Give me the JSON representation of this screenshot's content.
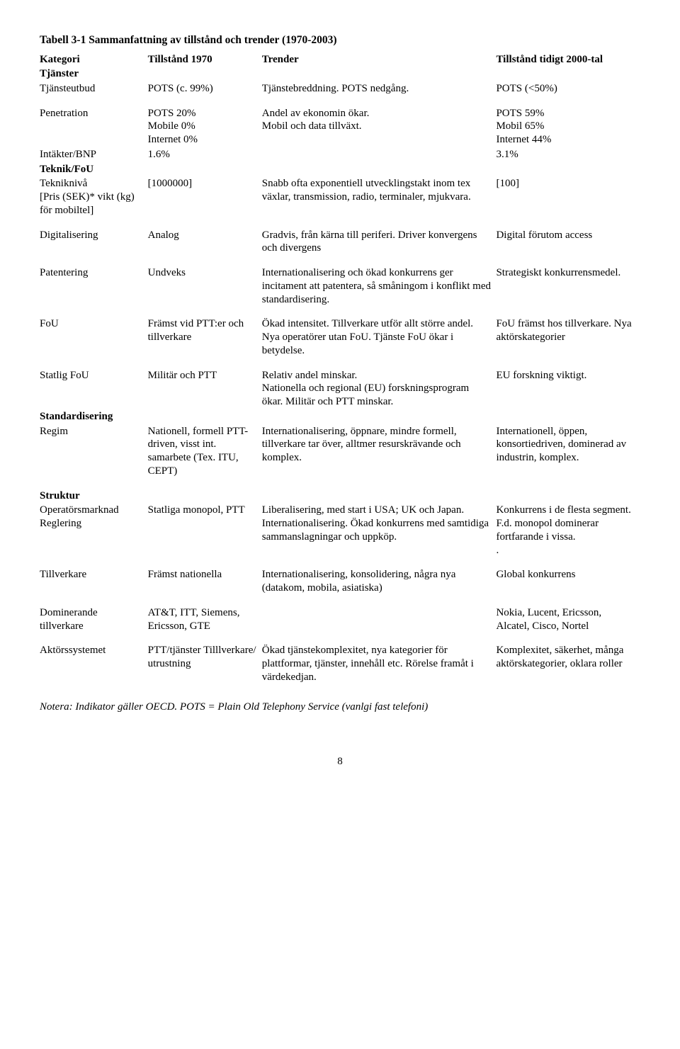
{
  "title": "Tabell 3-1 Sammanfattning av tillstånd och trender (1970-2003)",
  "headers": {
    "kategori": "Kategori",
    "t1970": "Tillstånd 1970",
    "trender": "Trender",
    "t2000": "Tillstånd tidigt 2000-tal"
  },
  "sections": {
    "tjanster": "Tjänster",
    "teknik": "Teknik/FoU",
    "standard": "Standardisering",
    "struktur": "Struktur"
  },
  "rows": {
    "tjansteutbud": {
      "k": "Tjänsteutbud",
      "a": "POTS (c. 99%)",
      "b": "Tjänstebreddning. POTS nedgång.",
      "c": "POTS (<50%)"
    },
    "penetration": {
      "k": "Penetration",
      "a": "POTS 20%\nMobile 0%\nInternet 0%",
      "b": "Andel av ekonomin ökar.\nMobil och data tillväxt.",
      "c": "POTS 59%\nMobil 65%\nInternet 44%"
    },
    "intakter": {
      "k": "Intäkter/BNP",
      "a": "1.6%",
      "b": "",
      "c": "3.1%"
    },
    "teknikniva": {
      "k": "Tekniknivå\n[Pris (SEK)* vikt (kg) för mobiltel]",
      "a": "[1000000]",
      "b": "Snabb ofta exponentiell utvecklingstakt inom tex växlar, transmission, radio, terminaler, mjukvara.",
      "c": "[100]"
    },
    "digi": {
      "k": "Digitalisering",
      "a": "Analog",
      "b": "Gradvis, från kärna till periferi. Driver konvergens och divergens",
      "c": "Digital förutom access"
    },
    "patent": {
      "k": "Patentering",
      "a": "Undveks",
      "b": "Internationalisering och ökad konkurrens ger incitament att patentera, så småningom i konflikt med standardisering.",
      "c": "Strategiskt konkurrensmedel."
    },
    "fou": {
      "k": "FoU",
      "a": "Främst vid PTT:er och tillverkare",
      "b": "Ökad intensitet. Tillverkare utför allt större andel. Nya operatörer utan FoU. Tjänste FoU ökar i betydelse.",
      "c": "FoU främst hos tillverkare. Nya aktörskategorier"
    },
    "statligfou": {
      "k": "Statlig FoU",
      "a": "Militär och PTT",
      "b": "Relativ andel minskar.\nNationella och regional (EU) forskningsprogram ökar. Militär och PTT minskar.",
      "c": "EU forskning viktigt."
    },
    "regim": {
      "k": "Regim",
      "a": "Nationell, formell PTT-driven, visst int. samarbete (Tex. ITU, CEPT)",
      "b": "Internationalisering, öppnare, mindre formell, tillverkare tar över, alltmer resurskrävande och komplex.",
      "c": "Internationell, öppen, konsortiedriven, dominerad av industrin, komplex."
    },
    "operator": {
      "k": "Operatörsmarknad Reglering",
      "a": "Statliga monopol, PTT",
      "b": "Liberalisering, med start i USA; UK och Japan. Internationalisering. Ökad konkurrens med samtidiga sammanslagningar och uppköp.",
      "c": "Konkurrens i de flesta segment. F.d. monopol dominerar fortfarande i vissa.\n."
    },
    "tillverkare": {
      "k": "Tillverkare",
      "a": "Främst nationella",
      "b": "Internationalisering, konsolidering, några nya (datakom, mobila, asiatiska)",
      "c": "Global konkurrens"
    },
    "domtill": {
      "k": "Dominerande tillverkare",
      "a": "AT&T, ITT, Siemens, Ericsson, GTE",
      "b": "",
      "c": "Nokia, Lucent, Ericsson, Alcatel, Cisco, Nortel"
    },
    "aktor": {
      "k": "Aktörssystemet",
      "a": "PTT/tjänster Tilllverkare/ utrustning",
      "b": "Ökad tjänstekomplexitet, nya kategorier för plattformar, tjänster, innehåll etc. Rörelse framåt i värdekedjan.",
      "c": "Komplexitet, säkerhet, många aktörskategorier, oklara roller"
    }
  },
  "note": "Notera: Indikator gäller OECD. POTS = Plain Old Telephony Service (vanlgi fast telefoni)",
  "pagenum": "8"
}
